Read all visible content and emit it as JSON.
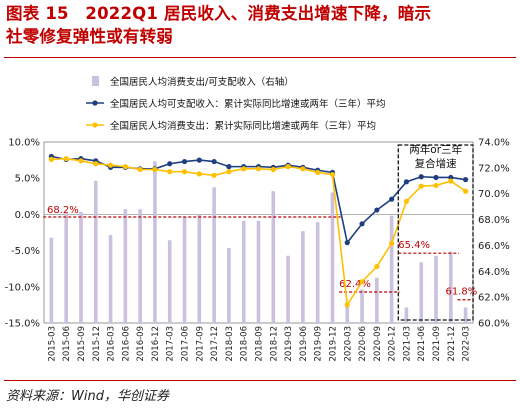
{
  "title": {
    "line1": "图表 15　2022Q1 居民收入、消费支出增速下降，暗示",
    "line2": "社零修复弹性或有转弱"
  },
  "source": "资料来源：Wind，华创证券",
  "chart_data": {
    "type": "bar+line",
    "categories": [
      "2015-03",
      "2015-06",
      "2015-09",
      "2015-12",
      "2016-03",
      "2016-06",
      "2016-09",
      "2016-12",
      "2017-03",
      "2017-06",
      "2017-09",
      "2017-12",
      "2018-03",
      "2018-06",
      "2018-09",
      "2018-12",
      "2019-03",
      "2019-06",
      "2019-09",
      "2019-12",
      "2020-03",
      "2020-06",
      "2020-09",
      "2020-12",
      "2021-03",
      "2021-06",
      "2021-09",
      "2021-12",
      "2022-03"
    ],
    "left_axis": {
      "ylim": [
        -15,
        10
      ],
      "ticks": [
        10,
        5,
        0,
        -5,
        -10,
        -15
      ],
      "tick_labels": [
        "10.0%",
        "5.0%",
        "0.0%",
        "-5.0%",
        "-10.0%",
        "-15.0%"
      ]
    },
    "right_axis": {
      "ylim": [
        60,
        74
      ],
      "ticks": [
        74,
        72,
        70,
        68,
        66,
        64,
        62,
        60
      ],
      "tick_labels": [
        "74.0%",
        "72.0%",
        "70.0%",
        "68.0%",
        "66.0%",
        "64.0%",
        "62.0%",
        "60.0%"
      ]
    },
    "series": [
      {
        "name": "全国居民人均消费支出/可支配收入（右轴）",
        "kind": "bar",
        "axis": "right",
        "color": "#cbc0de",
        "values": [
          66.6,
          68.5,
          68.6,
          71.0,
          66.8,
          68.8,
          68.8,
          72.5,
          66.4,
          68.2,
          68.4,
          70.5,
          65.8,
          67.9,
          67.9,
          70.2,
          65.2,
          67.1,
          67.8,
          70.1,
          61.6,
          62.6,
          63.5,
          68.3,
          61.2,
          64.7,
          65.2,
          65.5,
          61.2
        ]
      },
      {
        "name": "全国居民人均可支配收入：累计实际同比增速或两年（三年）平均",
        "kind": "line",
        "axis": "left",
        "color": "#1f3f80",
        "values": [
          8.0,
          7.6,
          7.7,
          7.4,
          6.5,
          6.5,
          6.3,
          6.3,
          7.0,
          7.3,
          7.5,
          7.3,
          6.6,
          6.6,
          6.6,
          6.5,
          6.8,
          6.5,
          6.1,
          5.8,
          -3.9,
          -1.3,
          0.6,
          2.1,
          4.5,
          5.2,
          5.1,
          5.1,
          4.8
        ]
      },
      {
        "name": "全国居民人均消费支出：累计实际同比增速或两年（三年）平均",
        "kind": "line",
        "axis": "left",
        "color": "#ffc000",
        "values": [
          7.6,
          7.7,
          7.4,
          7.0,
          6.8,
          6.6,
          6.2,
          6.2,
          5.9,
          5.9,
          5.6,
          5.4,
          5.9,
          6.3,
          6.3,
          6.2,
          6.6,
          6.3,
          5.8,
          5.5,
          -12.5,
          -9.3,
          -7.2,
          -4.0,
          1.8,
          3.9,
          4.0,
          4.6,
          3.2
        ]
      }
    ],
    "reference_lines": [
      {
        "label": "68.2%",
        "value": 68.2,
        "axis": "right",
        "from": "2015-03",
        "to": "2019-12"
      },
      {
        "label": "62.4%",
        "value": 62.4,
        "axis": "right",
        "from": "2020-03",
        "to": "2020-12"
      },
      {
        "label": "65.4%",
        "value": 65.4,
        "axis": "right",
        "from": "2021-03",
        "to": "2021-12"
      },
      {
        "label": "61.8%",
        "value": 61.8,
        "axis": "right",
        "from": "2022-03",
        "to": "2022-03"
      }
    ],
    "box_annotation": {
      "label_line1": "两年or三年",
      "label_line2": "复合增速",
      "from": "2021-03",
      "to": "2022-03"
    },
    "legend_placement": "top-left",
    "grid": false,
    "ref_color": "#c00000"
  }
}
